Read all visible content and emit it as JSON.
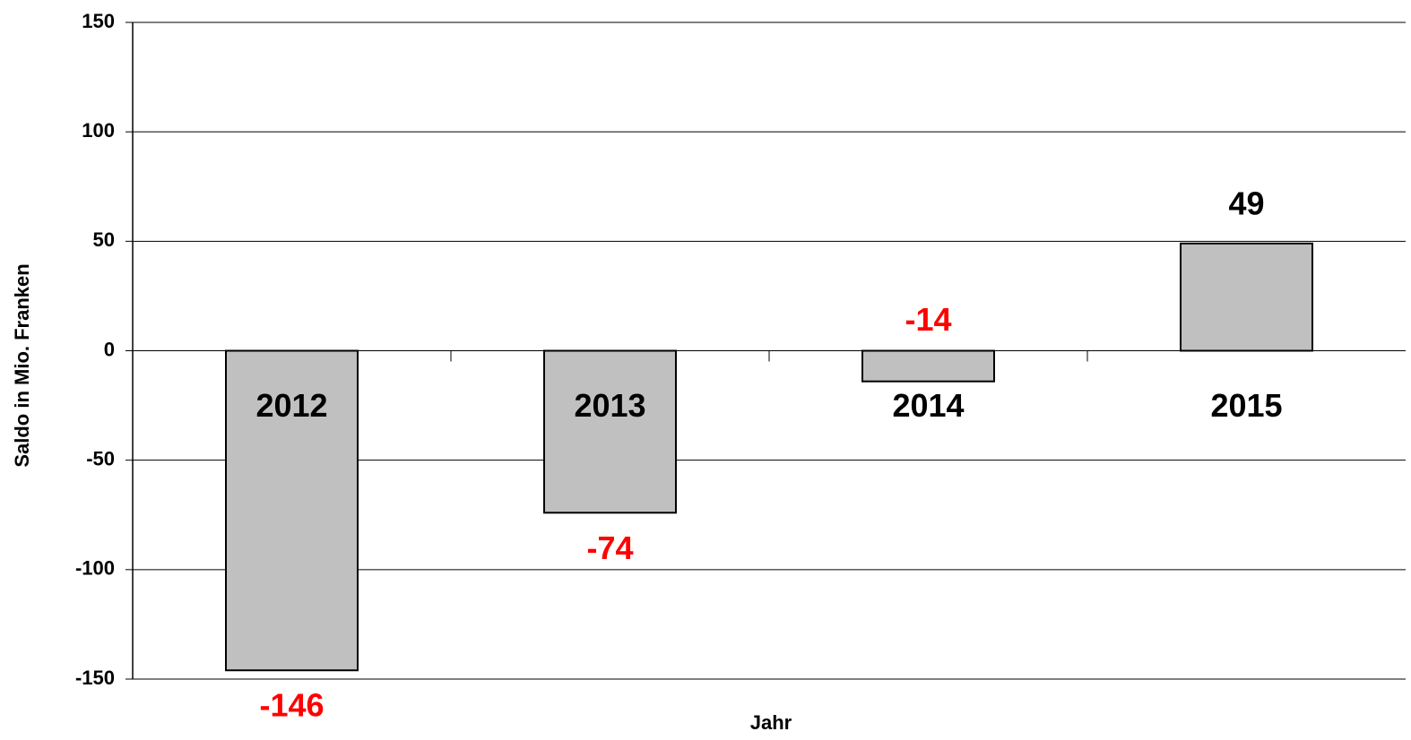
{
  "chart_data": {
    "type": "bar",
    "categories": [
      "2012",
      "2013",
      "2014",
      "2015"
    ],
    "values": [
      -146,
      -74,
      -14,
      49
    ],
    "color": "#c0c0c0",
    "negative_label_color": "#ff0000",
    "positive_label_color": "#000000",
    "xlabel": "Jahr",
    "ylabel": "Saldo in Mio. Franken",
    "ylim": [
      -150,
      150
    ],
    "yticks": [
      -150,
      -100,
      -50,
      0,
      50,
      100,
      150
    ],
    "grid": true
  }
}
